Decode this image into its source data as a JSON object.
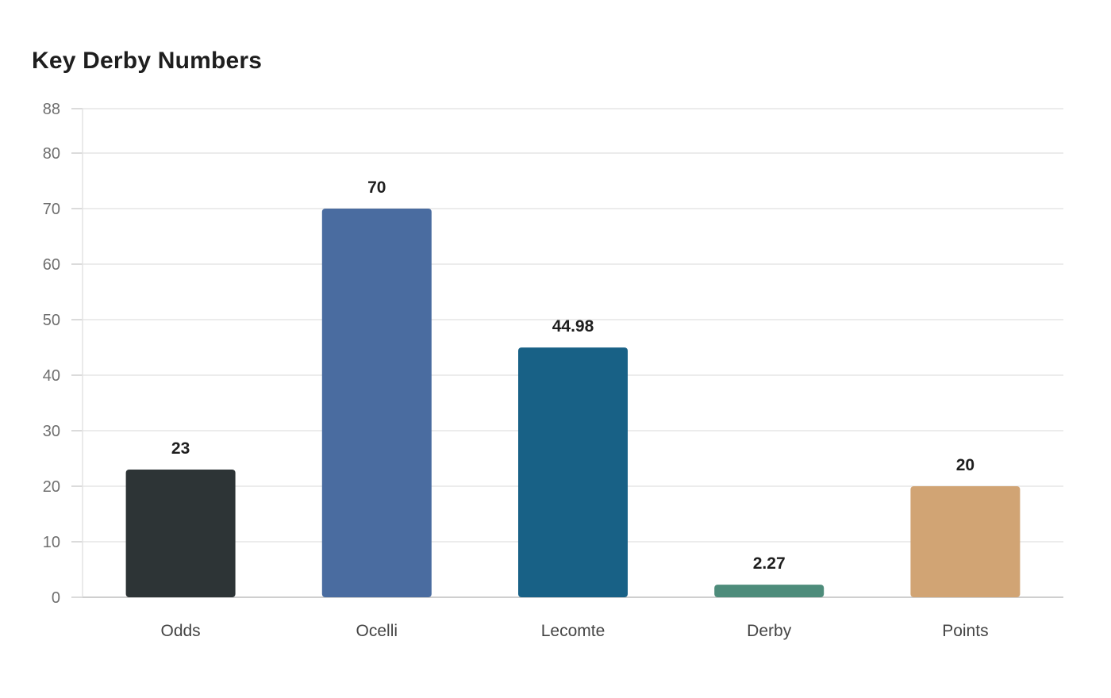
{
  "chart_data": {
    "type": "bar",
    "title": "Key Derby Numbers",
    "xlabel": "",
    "ylabel": "",
    "categories": [
      "Odds",
      "Ocelli",
      "Lecomte",
      "Derby",
      "Points"
    ],
    "values": [
      23,
      70,
      44.98,
      2.27,
      20
    ],
    "value_labels": [
      "23",
      "70",
      "44.98",
      "2.27",
      "20"
    ],
    "colors": [
      "#2d3436",
      "#4a6ca0",
      "#186186",
      "#4e8c7b",
      "#d1a474"
    ],
    "ylim": [
      0,
      88
    ],
    "yticks": [
      0,
      10,
      20,
      30,
      40,
      50,
      60,
      70,
      80,
      88
    ],
    "grid": true,
    "legend": "none"
  }
}
